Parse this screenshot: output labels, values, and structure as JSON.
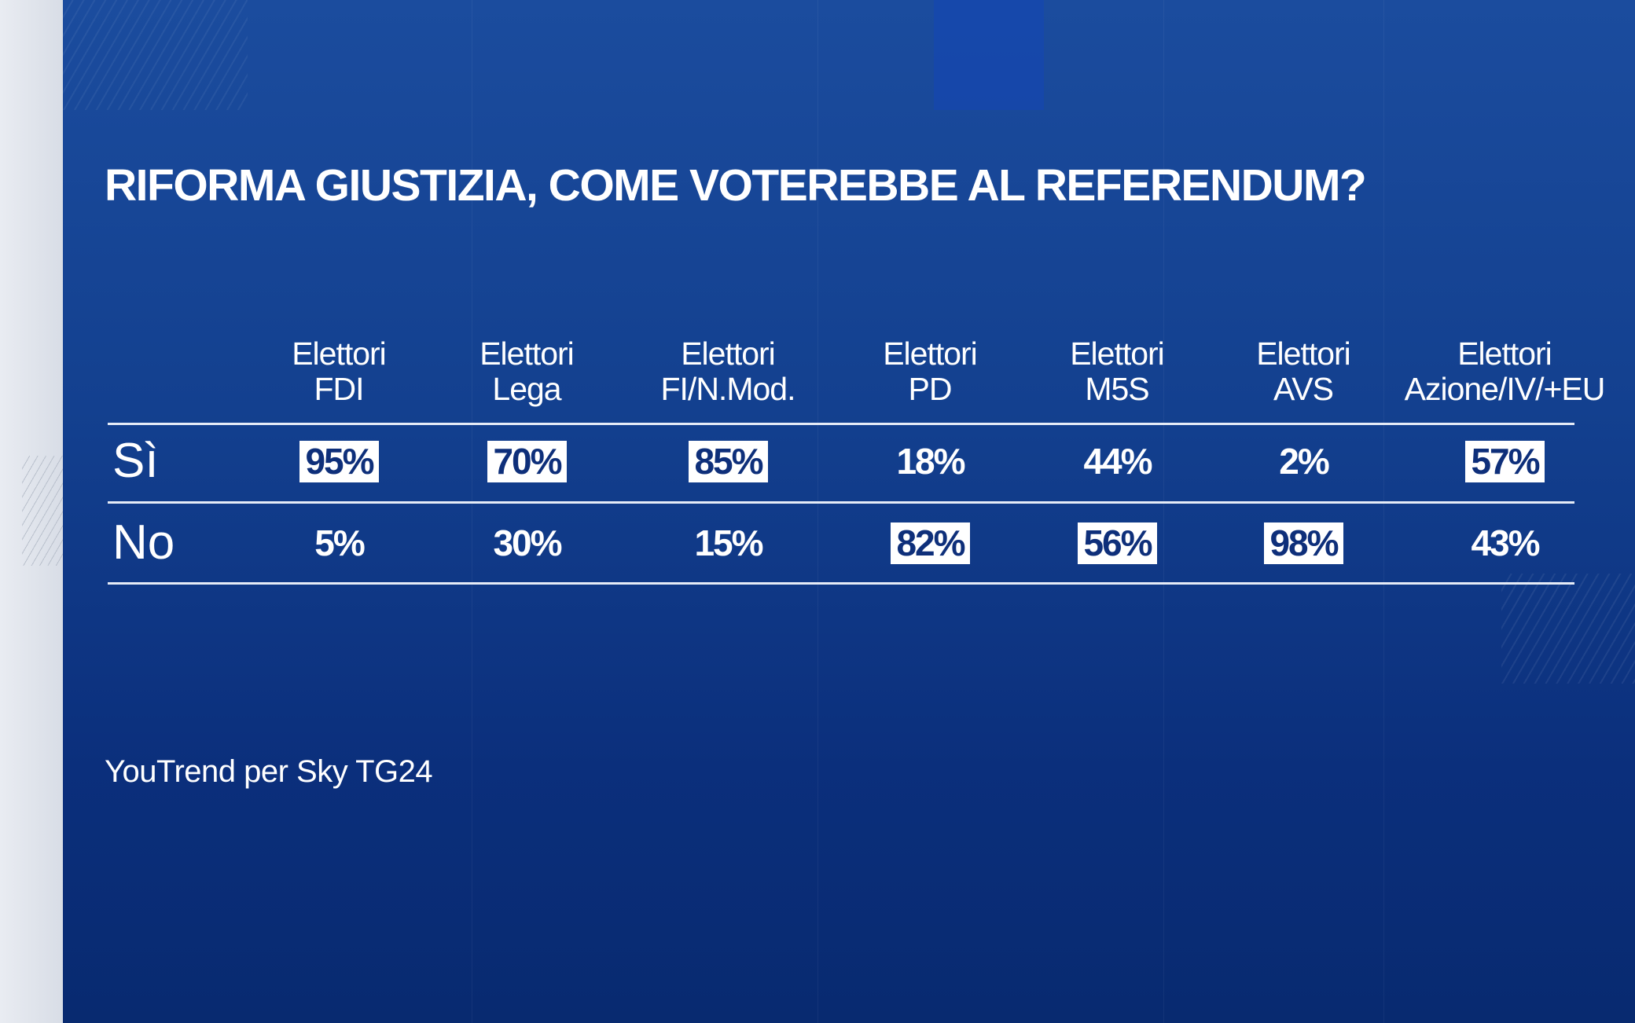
{
  "title": "RIFORMA GIUSTIZIA, COME VOTEREBBE AL REFERENDUM?",
  "columns": [
    {
      "line1": "Elettori",
      "line2": "FDI"
    },
    {
      "line1": "Elettori",
      "line2": "Lega"
    },
    {
      "line1": "Elettori",
      "line2": "FI/N.Mod."
    },
    {
      "line1": "Elettori",
      "line2": "PD"
    },
    {
      "line1": "Elettori",
      "line2": "M5S"
    },
    {
      "line1": "Elettori",
      "line2": "AVS"
    },
    {
      "line1": "Elettori",
      "line2": "Azione/IV/+EU"
    }
  ],
  "rows": [
    {
      "label": "Sì",
      "values": [
        "95%",
        "70%",
        "85%",
        "18%",
        "44%",
        "2%",
        "57%"
      ],
      "highlighted": [
        true,
        true,
        true,
        false,
        false,
        false,
        true
      ]
    },
    {
      "label": "No",
      "values": [
        "5%",
        "30%",
        "15%",
        "82%",
        "56%",
        "98%",
        "43%"
      ],
      "highlighted": [
        false,
        false,
        false,
        true,
        true,
        true,
        false
      ]
    }
  ],
  "source": "YouTrend per Sky TG24",
  "colors": {
    "background": "#13408f",
    "highlight_box": "#ffffff",
    "highlight_text": "#0e2f7a"
  }
}
